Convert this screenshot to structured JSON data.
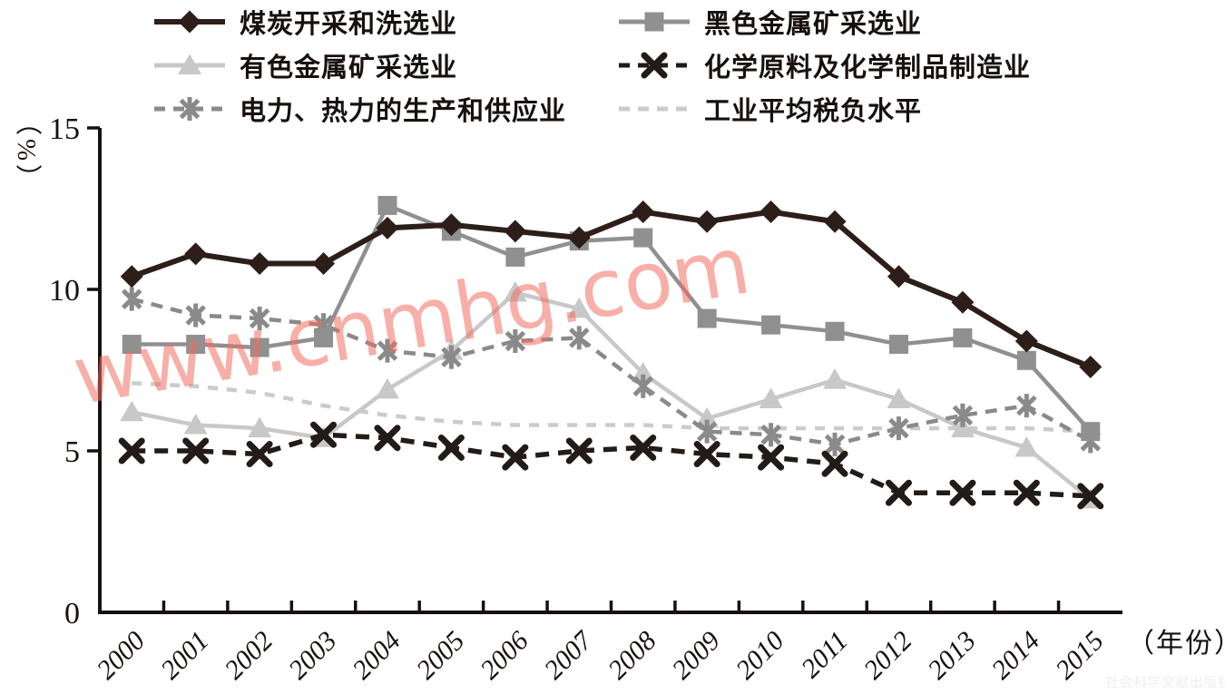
{
  "watermark": {
    "text": "www.cnmhg.com",
    "color": "#f5a79b"
  },
  "publisher": {
    "text": "社会科学文献出版社"
  },
  "chart_data": {
    "type": "line",
    "title": "",
    "categories": [
      2000,
      2001,
      2002,
      2003,
      2004,
      2005,
      2006,
      2007,
      2008,
      2009,
      2010,
      2011,
      2012,
      2013,
      2014,
      2015
    ],
    "x_unit": "（年份）",
    "y_unit": "（%）",
    "ylim": [
      0,
      15
    ],
    "y_ticks": [
      0,
      5,
      10,
      15
    ],
    "grid": false,
    "legend_position": "top",
    "axis_color": "#17110e",
    "series": [
      {
        "name": "coal",
        "label": "煤炭开采和洗选业",
        "marker": "diamond",
        "line": "solid",
        "color": "#2d1e1a",
        "values": [
          10.4,
          11.1,
          10.8,
          10.8,
          11.9,
          12.0,
          11.8,
          11.6,
          12.4,
          12.1,
          12.4,
          12.1,
          10.4,
          9.6,
          8.4,
          7.6
        ]
      },
      {
        "name": "ferrous",
        "label": "黑色金属矿采选业",
        "marker": "square",
        "line": "solid",
        "color": "#909090",
        "values": [
          8.3,
          8.3,
          8.2,
          8.5,
          12.6,
          11.8,
          11.0,
          11.5,
          11.6,
          9.1,
          8.9,
          8.7,
          8.3,
          8.5,
          7.8,
          5.6
        ]
      },
      {
        "name": "nonferrous",
        "label": "有色金属矿采选业",
        "marker": "triangle",
        "line": "solid",
        "color": "#c8c8c8",
        "values": [
          6.2,
          5.8,
          5.7,
          5.4,
          6.9,
          8.1,
          9.9,
          9.4,
          7.4,
          6.0,
          6.6,
          7.2,
          6.6,
          5.7,
          5.1,
          3.5
        ]
      },
      {
        "name": "chemical",
        "label": "化学原料及化学制品制造业",
        "marker": "x",
        "line": "dashed",
        "color": "#221b17",
        "values": [
          5.0,
          5.0,
          4.9,
          5.5,
          5.4,
          5.1,
          4.8,
          5.0,
          5.1,
          4.9,
          4.8,
          4.6,
          3.7,
          3.7,
          3.7,
          3.6
        ]
      },
      {
        "name": "power",
        "label": "电力、热力的生产和供应业",
        "marker": "asterisk",
        "line": "dashed",
        "color": "#8a8a8a",
        "values": [
          9.7,
          9.2,
          9.1,
          8.9,
          8.1,
          7.9,
          8.4,
          8.5,
          7.0,
          5.6,
          5.5,
          5.2,
          5.7,
          6.1,
          6.4,
          5.3
        ]
      },
      {
        "name": "average",
        "label": "工业平均税负水平",
        "marker": "none",
        "line": "dashed",
        "color": "#cbcbcb",
        "values": [
          7.1,
          7.0,
          6.8,
          6.4,
          6.1,
          5.9,
          5.8,
          5.8,
          5.8,
          5.7,
          5.7,
          5.7,
          5.7,
          5.7,
          5.7,
          5.6
        ]
      }
    ],
    "draw_order": [
      "average",
      "nonferrous",
      "power",
      "chemical",
      "ferrous",
      "coal"
    ]
  }
}
